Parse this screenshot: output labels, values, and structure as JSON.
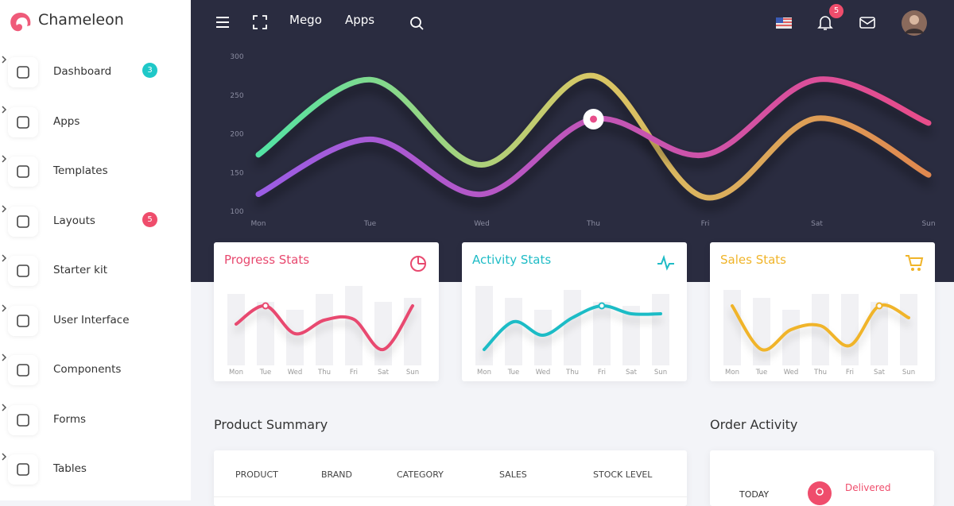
{
  "brand": "Chameleon",
  "sidebar": {
    "items": [
      {
        "label": "Dashboard",
        "badge": "3",
        "badge_color": "#1fc8c8"
      },
      {
        "label": "Apps"
      },
      {
        "label": "Templates"
      },
      {
        "label": "Layouts",
        "badge": "5",
        "badge_color": "#ef4d6c"
      },
      {
        "label": "Starter kit"
      },
      {
        "label": "User Interface"
      },
      {
        "label": "Components"
      },
      {
        "label": "Forms"
      },
      {
        "label": "Tables"
      }
    ]
  },
  "topbar": {
    "nav": [
      "Mego",
      "Apps"
    ],
    "notifications": "5"
  },
  "chart_data": [
    {
      "type": "line",
      "categories": [
        "Mon",
        "Tue",
        "Wed",
        "Thu",
        "Fri",
        "Sat",
        "Sun"
      ],
      "ylim": [
        100,
        300
      ],
      "yticks": [
        100,
        150,
        200,
        250,
        300
      ],
      "series": [
        {
          "colors": [
            "#52e3a4",
            "#d9c765",
            "#e0884f"
          ],
          "values": [
            173,
            270,
            160,
            275,
            118,
            220,
            147
          ]
        },
        {
          "colors": [
            "#9b5de5",
            "#e84d8a"
          ],
          "values": [
            122,
            193,
            122,
            219,
            173,
            270,
            214
          ],
          "highlight": 3
        }
      ]
    },
    {
      "type": "line",
      "title": "Progress Stats",
      "color": "#e8496f",
      "bar_color": "#f1f1f4",
      "categories": [
        "Mon",
        "Tue",
        "Wed",
        "Thu",
        "Fri",
        "Sat",
        "Sun"
      ],
      "ylim": [
        0,
        100
      ],
      "bars": [
        90,
        80,
        70,
        90,
        100,
        80,
        85
      ],
      "values": [
        52,
        75,
        40,
        57,
        58,
        20,
        75
      ],
      "highlight": 1
    },
    {
      "type": "line",
      "title": "Activity Stats",
      "color": "#1fbcc6",
      "bar_color": "#f1f1f4",
      "categories": [
        "Mon",
        "Tue",
        "Wed",
        "Thu",
        "Fri",
        "Sat",
        "Sun"
      ],
      "ylim": [
        0,
        100
      ],
      "bars": [
        100,
        85,
        70,
        95,
        80,
        75,
        90
      ],
      "values": [
        20,
        55,
        38,
        60,
        75,
        65,
        65
      ],
      "highlight": 4
    },
    {
      "type": "line",
      "title": "Sales Stats",
      "color": "#f0b429",
      "bar_color": "#f1f1f4",
      "categories": [
        "Mon",
        "Tue",
        "Wed",
        "Thu",
        "Fri",
        "Sat",
        "Sun"
      ],
      "ylim": [
        0,
        100
      ],
      "bars": [
        95,
        85,
        70,
        90,
        90,
        80,
        90
      ],
      "values": [
        75,
        20,
        45,
        50,
        25,
        75,
        60
      ],
      "highlight": 5
    }
  ],
  "product_summary": {
    "title": "Product Summary",
    "columns": [
      "PRODUCT",
      "BRAND",
      "CATEGORY",
      "SALES",
      "STOCK LEVEL"
    ]
  },
  "order_activity": {
    "title": "Order Activity",
    "day": "TODAY",
    "status": "Delivered"
  }
}
